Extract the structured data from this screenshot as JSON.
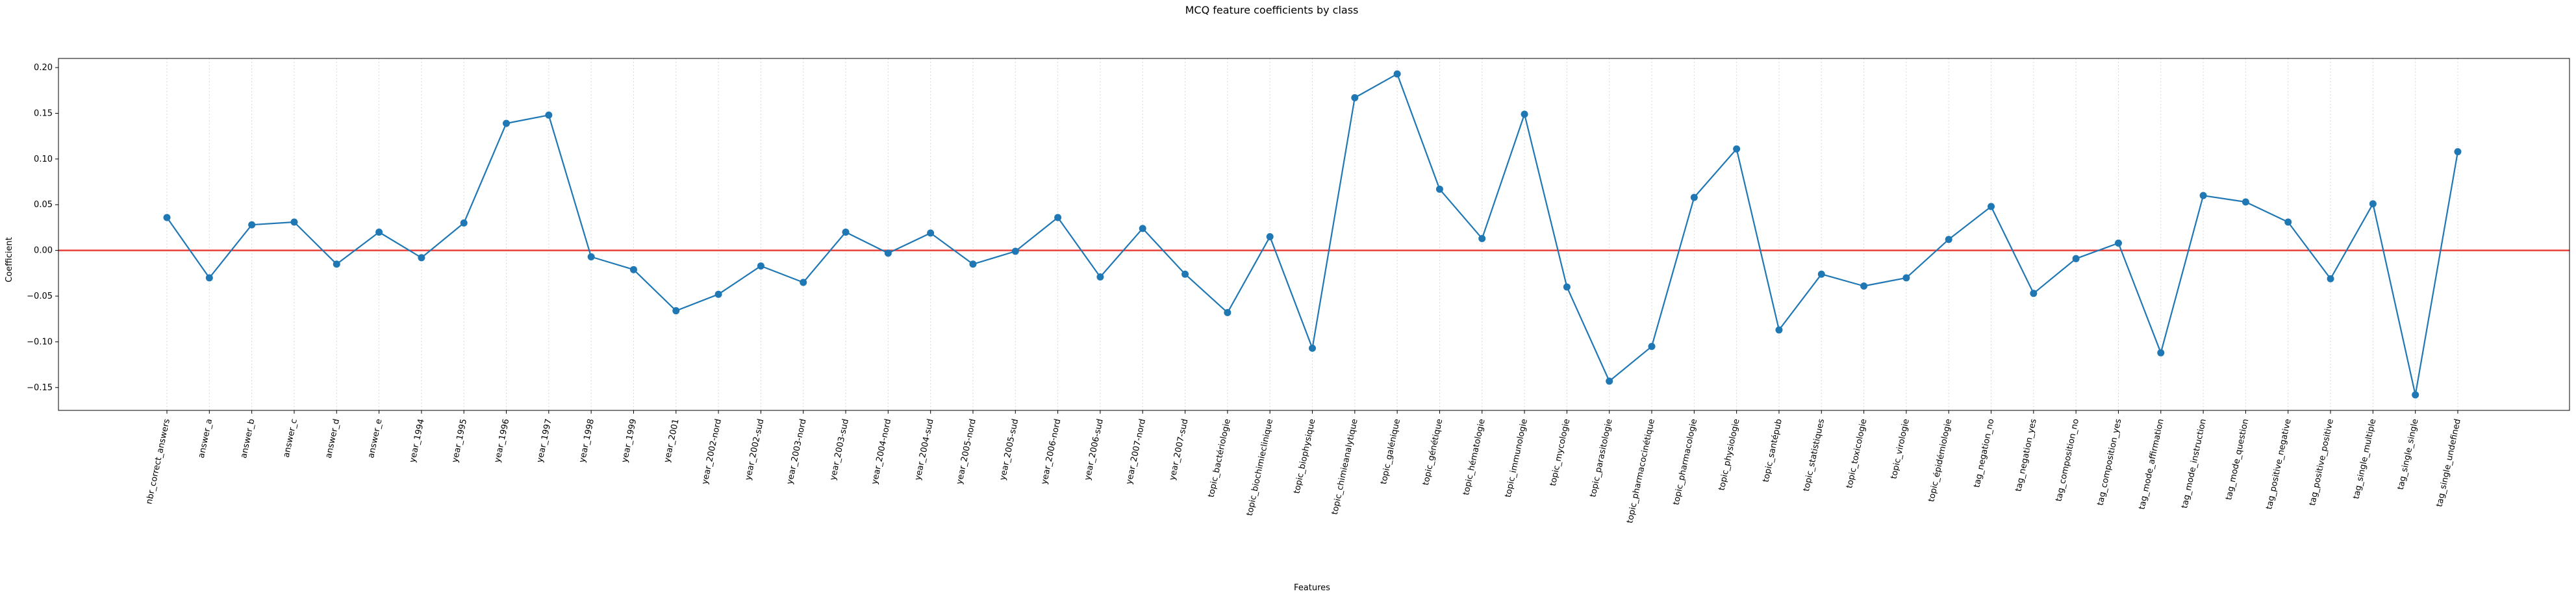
{
  "chart_data": {
    "type": "line",
    "title": "MCQ feature coefficients by class",
    "xlabel": "Features",
    "ylabel": "Coefficient",
    "ylim": [
      -0.175,
      0.21
    ],
    "yticks": [
      -0.15,
      -0.1,
      -0.05,
      0.0,
      0.05,
      0.1,
      0.15,
      0.2
    ],
    "ytick_labels": [
      "−0.15",
      "−0.10",
      "−0.05",
      "0.00",
      "0.05",
      "0.10",
      "0.15",
      "0.20"
    ],
    "grid": "vertical, dotted",
    "reference_line": {
      "y": 0,
      "color": "#e8413c"
    },
    "series_color": "#1f77b4",
    "categories": [
      "nbr_correct_answers",
      "answer_a",
      "answer_b",
      "answer_c",
      "answer_d",
      "answer_e",
      "year_1994",
      "year_1995",
      "year_1996",
      "year_1997",
      "year_1998",
      "year_1999",
      "year_2001",
      "year_2002-nord",
      "year_2002-sud",
      "year_2003-nord",
      "year_2003-sud",
      "year_2004-nord",
      "year_2004-sud",
      "year_2005-nord",
      "year_2005-sud",
      "year_2006-nord",
      "year_2006-sud",
      "year_2007-nord",
      "year_2007-sud",
      "topic_bactériologie",
      "topic_biochimieclinique",
      "topic_biophysique",
      "topic_chimieanalytique",
      "topic_galénique",
      "topic_génétique",
      "topic_hématologie",
      "topic_immunologie",
      "topic_mycologie",
      "topic_parasitologie",
      "topic_pharmacocinétique",
      "topic_pharmacologie",
      "topic_physiologie",
      "topic_santépub",
      "topic_statistiques",
      "topic_toxicologie",
      "topic_virologie",
      "topic_épidémiologie",
      "tag_negation_no",
      "tag_negation_yes",
      "tag_composition_no",
      "tag_composition_yes",
      "tag_mode_affirmation",
      "tag_mode_instruction",
      "tag_mode_question",
      "tag_positive_negative",
      "tag_positive_positive",
      "tag_single_multiple",
      "tag_single_single",
      "tag_single_undefined"
    ],
    "values": [
      0.036,
      -0.03,
      0.028,
      0.031,
      -0.015,
      0.02,
      -0.008,
      0.03,
      0.139,
      0.148,
      -0.007,
      -0.021,
      -0.066,
      -0.048,
      -0.017,
      -0.035,
      0.02,
      -0.003,
      0.019,
      -0.015,
      -0.001,
      0.036,
      -0.029,
      0.024,
      -0.026,
      -0.068,
      0.015,
      -0.107,
      0.167,
      0.193,
      0.067,
      0.013,
      0.149,
      -0.04,
      -0.143,
      -0.105,
      0.058,
      0.111,
      -0.087,
      -0.026,
      -0.039,
      -0.03,
      0.012,
      0.048,
      -0.047,
      -0.009,
      0.008,
      -0.112,
      0.06,
      0.053,
      0.031,
      -0.031,
      0.051,
      -0.158,
      0.108
    ]
  }
}
